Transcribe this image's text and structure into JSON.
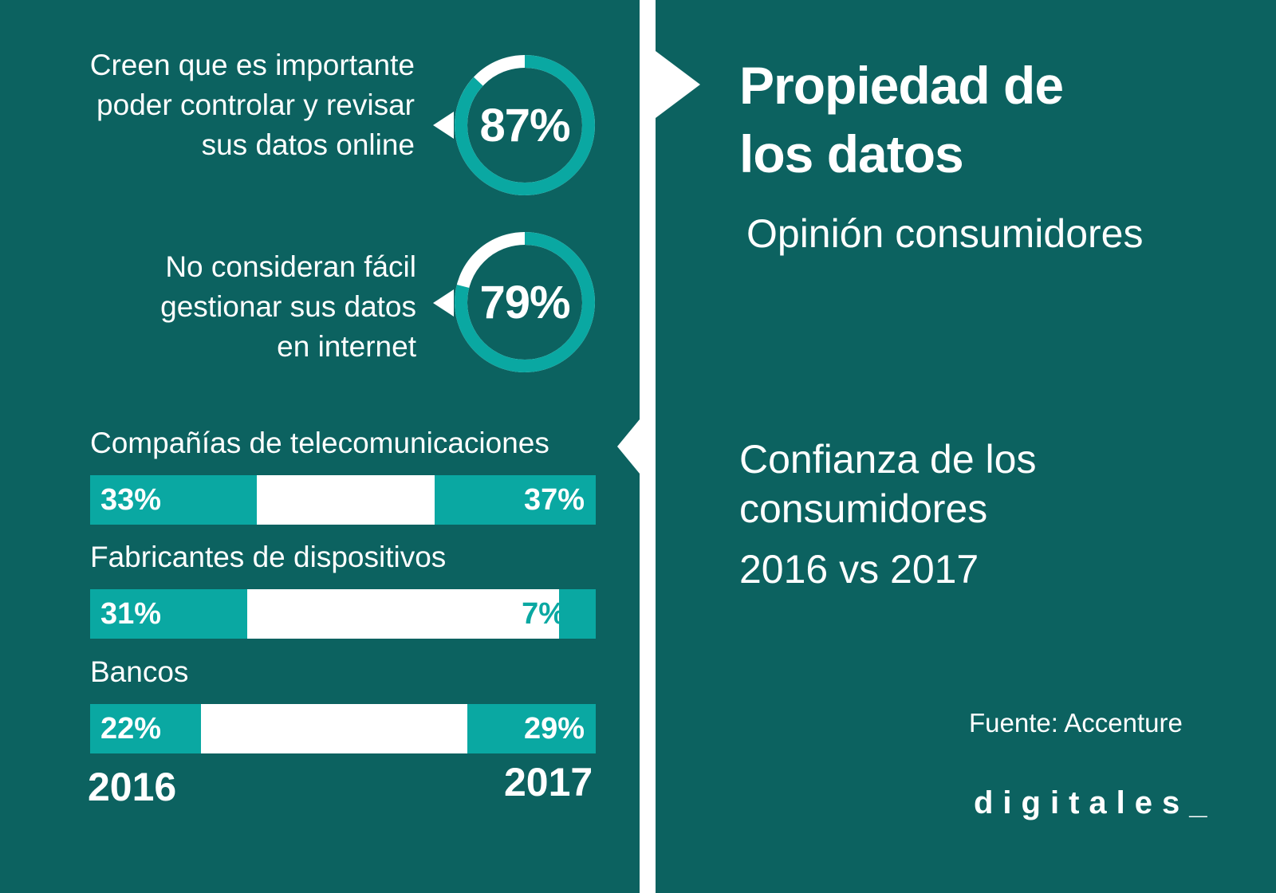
{
  "title": [
    "Propiedad de",
    "los datos"
  ],
  "subtitle": "Opinión consumidores",
  "trust": {
    "title": [
      "Confianza de los",
      "consumidores"
    ],
    "years": "2016 vs 2017"
  },
  "source": "Fuente: Accenture",
  "logo": "digitales_",
  "colors": {
    "background": "#0c6260",
    "accent": "#0aa8a2",
    "white": "#ffffff"
  },
  "chart_data": [
    {
      "type": "donut",
      "stats": [
        {
          "text": [
            "Creen que es importante",
            "poder controlar y revisar",
            "sus datos online"
          ],
          "label": "87%",
          "value": 87
        },
        {
          "text": [
            "No consideran fácil",
            "gestionar sus datos",
            "en internet"
          ],
          "label": "79%",
          "value": 79
        }
      ]
    },
    {
      "type": "bar",
      "categories": [
        "Compañías de telecomunicaciones",
        "Fabricantes de dispositivos",
        "Bancos"
      ],
      "series": [
        {
          "name": "2016",
          "values": [
            33,
            31,
            22
          ],
          "labels": [
            "33%",
            "31%",
            "22%"
          ]
        },
        {
          "name": "2017",
          "values": [
            37,
            7,
            29
          ],
          "labels": [
            "37%",
            "7%",
            "29%"
          ]
        }
      ],
      "xlabel_left": "2016",
      "xlabel_right": "2017"
    }
  ]
}
